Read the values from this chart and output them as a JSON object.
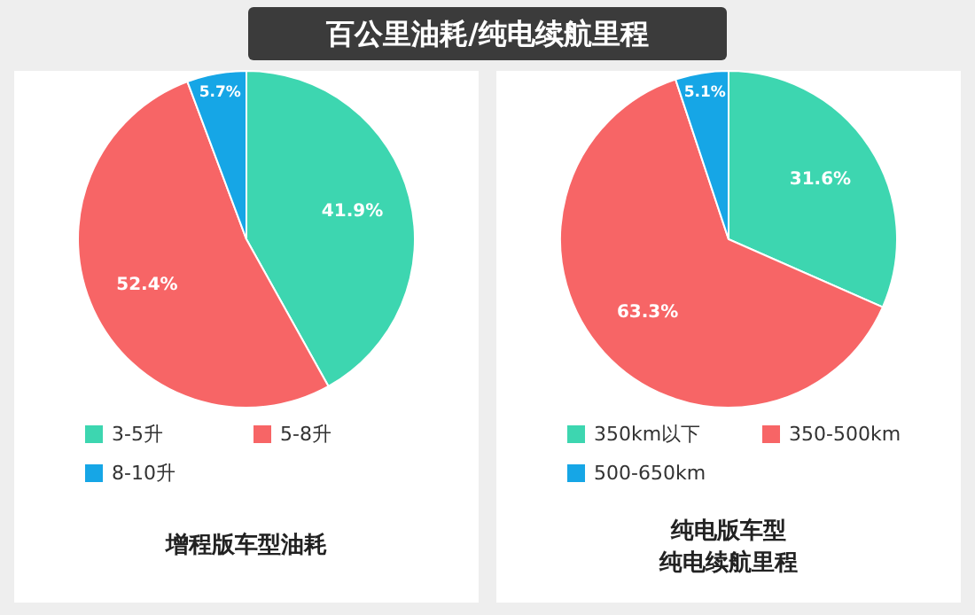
{
  "chart_data": [
    {
      "type": "pie",
      "title": "百公里油耗/纯电续航里程",
      "subtitle": "增程版车型油耗",
      "categories": [
        "3-5升",
        "5-8升",
        "8-10升"
      ],
      "values": [
        41.9,
        52.4,
        5.7
      ],
      "value_labels": [
        "41.9%",
        "52.4%",
        "5.7%"
      ],
      "colors": [
        "#3dd6b0",
        "#f76566",
        "#16a6e6"
      ],
      "legend": "bottom"
    },
    {
      "type": "pie",
      "subtitle": "纯电版车型",
      "xlabel": "纯电续航里程",
      "categories": [
        "350km以下",
        "350-500km",
        "500-650km"
      ],
      "values": [
        31.6,
        63.3,
        5.1
      ],
      "value_labels": [
        "31.6%",
        "63.3%",
        "5.1%"
      ],
      "colors": [
        "#3dd6b0",
        "#f76566",
        "#16a6e6"
      ],
      "legend": "bottom"
    }
  ]
}
